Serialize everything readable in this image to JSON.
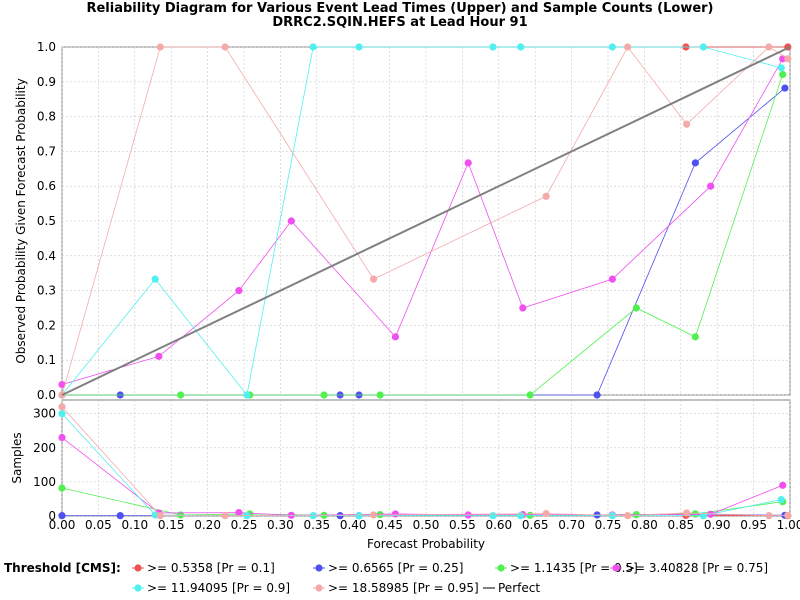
{
  "chart_data": [
    {
      "type": "line",
      "title_line1": "Reliability Diagram for Various Event Lead Times (Upper) and Sample Counts (Lower)",
      "title_line2": "DRRC2.SQIN.HEFS at Lead Hour 91",
      "xlabel": "Forecast Probability",
      "ylabel": "Observed Probability Given Forecast Probability",
      "xlim": [
        0,
        1
      ],
      "ylim": [
        0,
        1
      ],
      "x_ticks": [
        "0.00",
        "0.05",
        "0.10",
        "0.15",
        "0.20",
        "0.25",
        "0.30",
        "0.35",
        "0.40",
        "0.45",
        "0.50",
        "0.55",
        "0.60",
        "0.65",
        "0.70",
        "0.75",
        "0.80",
        "0.85",
        "0.90",
        "0.95",
        "1.00"
      ],
      "y_ticks": [
        "0.0",
        "0.1",
        "0.2",
        "0.3",
        "0.4",
        "0.5",
        "0.6",
        "0.7",
        "0.8",
        "0.9",
        "1.0"
      ],
      "grid": true,
      "series": [
        {
          "name": ">= 0.5358 [Pr = 0.1]",
          "color": "#f05050",
          "points": [
            [
              0.857,
              1.0
            ],
            [
              0.997,
              1.0
            ]
          ]
        },
        {
          "name": ">= 0.6565 [Pr = 0.25]",
          "color": "#5050f0",
          "points": [
            [
              0.0,
              0.0
            ],
            [
              0.08,
              0.0
            ],
            [
              0.382,
              0.0
            ],
            [
              0.408,
              0.0
            ],
            [
              0.735,
              0.0
            ],
            [
              0.87,
              0.667
            ],
            [
              0.993,
              0.882
            ]
          ]
        },
        {
          "name": ">= 1.1435 [Pr = 0.5]",
          "color": "#50f050",
          "points": [
            [
              0.0,
              0.0
            ],
            [
              0.163,
              0.0
            ],
            [
              0.258,
              0.0
            ],
            [
              0.36,
              0.0
            ],
            [
              0.437,
              0.0
            ],
            [
              0.643,
              0.0
            ],
            [
              0.789,
              0.25
            ],
            [
              0.87,
              0.167
            ],
            [
              0.99,
              0.921
            ]
          ]
        },
        {
          "name": ">= 3.40828 [Pr = 0.75]",
          "color": "#f050f0",
          "points": [
            [
              0.0,
              0.03
            ],
            [
              0.133,
              0.111
            ],
            [
              0.243,
              0.3
            ],
            [
              0.315,
              0.5
            ],
            [
              0.458,
              0.167
            ],
            [
              0.558,
              0.667
            ],
            [
              0.633,
              0.25
            ],
            [
              0.756,
              0.333
            ],
            [
              0.891,
              0.6
            ],
            [
              0.99,
              0.966
            ]
          ]
        },
        {
          "name": ">= 11.94095 [Pr = 0.9]",
          "color": "#50f0f0",
          "points": [
            [
              0.0,
              0.0
            ],
            [
              0.128,
              0.333
            ],
            [
              0.254,
              0.0
            ],
            [
              0.345,
              1.0
            ],
            [
              0.408,
              1.0
            ],
            [
              0.592,
              1.0
            ],
            [
              0.63,
              1.0
            ],
            [
              0.756,
              1.0
            ],
            [
              0.881,
              1.0
            ],
            [
              0.988,
              0.94
            ]
          ]
        },
        {
          "name": ">= 18.58985 [Pr = 0.95]",
          "color": "#f5aaaa",
          "points": [
            [
              0.0,
              0.0
            ],
            [
              0.135,
              1.0
            ],
            [
              0.224,
              1.0
            ],
            [
              0.428,
              0.333
            ],
            [
              0.665,
              0.571
            ],
            [
              0.777,
              1.0
            ],
            [
              0.858,
              0.778
            ],
            [
              0.971,
              1.0
            ],
            [
              0.997,
              0.966
            ]
          ]
        },
        {
          "name": "Perfect",
          "color": "#808080",
          "points": [
            [
              0.0,
              0.0
            ],
            [
              1.0,
              1.0
            ]
          ]
        }
      ]
    },
    {
      "type": "line",
      "xlabel": "Forecast Probability",
      "ylabel": "Samples",
      "xlim": [
        0,
        1
      ],
      "ylim": [
        0,
        340
      ],
      "y_ticks": [
        "0",
        "100",
        "200",
        "300"
      ],
      "grid": true,
      "series": [
        {
          "name": ">= 0.5358 [Pr = 0.1]",
          "color": "#f05050",
          "points": [
            [
              0.857,
              2
            ],
            [
              0.997,
              1
            ]
          ]
        },
        {
          "name": ">= 0.6565 [Pr = 0.25]",
          "color": "#5050f0",
          "points": [
            [
              0.0,
              1
            ],
            [
              0.08,
              1
            ],
            [
              0.382,
              1
            ],
            [
              0.408,
              1
            ],
            [
              0.735,
              3
            ],
            [
              0.87,
              6
            ],
            [
              0.993,
              2
            ]
          ]
        },
        {
          "name": ">= 1.1435 [Pr = 0.5]",
          "color": "#50f050",
          "points": [
            [
              0.0,
              82
            ],
            [
              0.163,
              3
            ],
            [
              0.258,
              6
            ],
            [
              0.36,
              2
            ],
            [
              0.437,
              4
            ],
            [
              0.643,
              2
            ],
            [
              0.789,
              4
            ],
            [
              0.87,
              6
            ],
            [
              0.99,
              42
            ]
          ]
        },
        {
          "name": ">= 3.40828 [Pr = 0.75]",
          "color": "#f050f0",
          "points": [
            [
              0.0,
              230
            ],
            [
              0.133,
              9
            ],
            [
              0.243,
              10
            ],
            [
              0.315,
              2
            ],
            [
              0.458,
              6
            ],
            [
              0.558,
              3
            ],
            [
              0.633,
              4
            ],
            [
              0.756,
              3
            ],
            [
              0.891,
              5
            ],
            [
              0.99,
              90
            ]
          ]
        },
        {
          "name": ">= 11.94095 [Pr = 0.9]",
          "color": "#50f0f0",
          "points": [
            [
              0.0,
              300
            ],
            [
              0.128,
              3
            ],
            [
              0.254,
              1
            ],
            [
              0.345,
              1
            ],
            [
              0.408,
              1
            ],
            [
              0.592,
              1
            ],
            [
              0.63,
              1
            ],
            [
              0.756,
              1
            ],
            [
              0.881,
              1
            ],
            [
              0.988,
              48
            ]
          ]
        },
        {
          "name": ">= 18.58985 [Pr = 0.95]",
          "color": "#f5aaaa",
          "points": [
            [
              0.0,
              320
            ],
            [
              0.135,
              1
            ],
            [
              0.224,
              1
            ],
            [
              0.428,
              3
            ],
            [
              0.665,
              7
            ],
            [
              0.777,
              1
            ],
            [
              0.858,
              9
            ],
            [
              0.971,
              1
            ],
            [
              0.997,
              2
            ]
          ]
        }
      ]
    }
  ],
  "legend": {
    "title": "Threshold [CMS]:",
    "placement": "bottom"
  }
}
